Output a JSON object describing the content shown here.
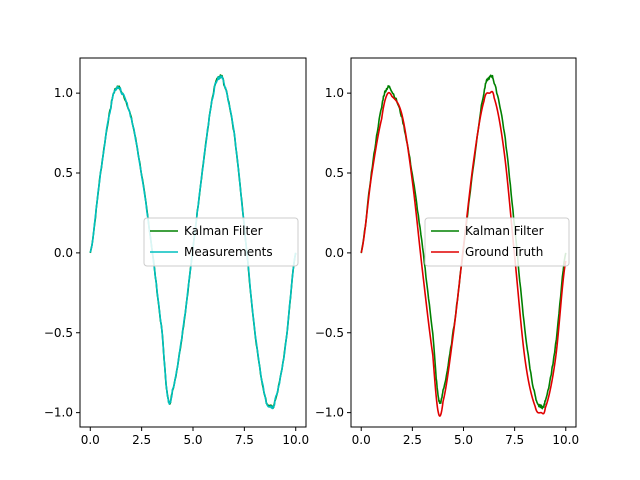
{
  "chart_data": [
    {
      "type": "line",
      "xlim": [
        -0.5,
        10.5
      ],
      "ylim": [
        -1.09,
        1.22
      ],
      "xticks": [
        0.0,
        2.5,
        5.0,
        7.5,
        10.0
      ],
      "xtick_labels": [
        "0.0",
        "2.5",
        "5.0",
        "7.5",
        "10.0"
      ],
      "yticks": [
        -1.0,
        -0.5,
        0.0,
        0.5,
        1.0
      ],
      "ytick_labels": [
        "−1.0",
        "−0.5",
        "0.0",
        "0.5",
        "1.0"
      ],
      "grid": false,
      "legend_position": "center-right",
      "legend": [
        "Kalman Filter",
        "Measurements"
      ],
      "series": [
        {
          "name": "Kalman Filter",
          "color": "#008000",
          "x": [
            0,
            0.5,
            1.0,
            1.26,
            1.5,
            2.0,
            2.5,
            3.0,
            3.5,
            3.78,
            4.0,
            4.5,
            5.0,
            5.5,
            6.0,
            6.3,
            6.5,
            7.0,
            7.5,
            8.0,
            8.5,
            8.78,
            9.0,
            9.5,
            10.0
          ],
          "y": [
            0,
            0.5,
            0.91,
            1.03,
            1.01,
            0.84,
            0.49,
            0.03,
            -0.5,
            -0.91,
            -0.86,
            -0.49,
            0.03,
            0.56,
            1.0,
            1.1,
            1.06,
            0.75,
            0.16,
            -0.48,
            -0.89,
            -0.96,
            -0.92,
            -0.58,
            0.0
          ]
        },
        {
          "name": "Measurements",
          "color": "#00bfbf",
          "x": [
            0,
            0.5,
            1.0,
            1.26,
            1.5,
            2.0,
            2.5,
            3.0,
            3.5,
            3.78,
            4.0,
            4.5,
            5.0,
            5.5,
            6.0,
            6.3,
            6.5,
            7.0,
            7.5,
            8.0,
            8.5,
            8.78,
            9.0,
            9.5,
            10.0
          ],
          "y": [
            0,
            0.5,
            0.91,
            1.03,
            1.01,
            0.84,
            0.49,
            0.03,
            -0.5,
            -0.91,
            -0.86,
            -0.49,
            0.03,
            0.56,
            1.0,
            1.1,
            1.06,
            0.75,
            0.16,
            -0.48,
            -0.89,
            -0.96,
            -0.92,
            -0.58,
            0.0
          ]
        }
      ]
    },
    {
      "type": "line",
      "xlim": [
        -0.5,
        10.5
      ],
      "ylim": [
        -1.09,
        1.22
      ],
      "xticks": [
        0.0,
        2.5,
        5.0,
        7.5,
        10.0
      ],
      "xtick_labels": [
        "0.0",
        "2.5",
        "5.0",
        "7.5",
        "10.0"
      ],
      "yticks": [
        -1.0,
        -0.5,
        0.0,
        0.5,
        1.0
      ],
      "ytick_labels": [
        "−1.0",
        "−0.5",
        "0.0",
        "0.5",
        "1.0"
      ],
      "grid": false,
      "legend_position": "center-right",
      "legend": [
        "Kalman Filter",
        "Ground Truth"
      ],
      "series": [
        {
          "name": "Kalman Filter",
          "color": "#008000",
          "x": [
            0,
            0.5,
            1.0,
            1.26,
            1.5,
            2.0,
            2.5,
            3.0,
            3.5,
            3.78,
            4.0,
            4.5,
            5.0,
            5.5,
            6.0,
            6.3,
            6.5,
            7.0,
            7.5,
            8.0,
            8.5,
            8.78,
            9.0,
            9.5,
            10.0
          ],
          "y": [
            0,
            0.5,
            0.91,
            1.03,
            1.01,
            0.84,
            0.49,
            0.03,
            -0.5,
            -0.91,
            -0.86,
            -0.49,
            0.03,
            0.56,
            1.0,
            1.1,
            1.06,
            0.75,
            0.16,
            -0.48,
            -0.89,
            -0.96,
            -0.92,
            -0.58,
            0.0
          ]
        },
        {
          "name": "Ground Truth",
          "color": "#e00000",
          "x": [
            0,
            0.5,
            1.0,
            1.26,
            1.5,
            2.0,
            2.5,
            3.0,
            3.5,
            3.77,
            4.0,
            4.5,
            5.0,
            5.5,
            6.0,
            6.28,
            6.5,
            7.0,
            7.5,
            8.0,
            8.5,
            8.8,
            9.0,
            9.5,
            10.0
          ],
          "y": [
            0,
            0.48,
            0.84,
            0.99,
            0.98,
            0.86,
            0.45,
            -0.12,
            -0.64,
            -1.0,
            -0.93,
            -0.51,
            0.04,
            0.58,
            0.95,
            1.0,
            0.97,
            0.62,
            -0.02,
            -0.66,
            -0.96,
            -1.0,
            -0.97,
            -0.66,
            -0.05
          ]
        }
      ]
    }
  ]
}
